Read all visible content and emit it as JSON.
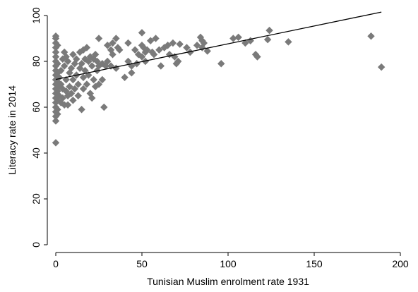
{
  "chart_data": {
    "type": "scatter",
    "title": "",
    "xlabel": "Tunisian Muslim enrolment rate 1931",
    "ylabel": "Literacy rate in 2014",
    "xlim": [
      0,
      200
    ],
    "ylim": [
      0,
      100
    ],
    "xticks": [
      "0",
      "50",
      "100",
      "150",
      "200"
    ],
    "yticks": [
      "0",
      "20",
      "40",
      "60",
      "80",
      "100"
    ],
    "grid": false,
    "legend": "none",
    "marker": "diamond",
    "point_color": "#7a7a7a",
    "line_color": "#000000",
    "fit_line": {
      "x": [
        0,
        189
      ],
      "y": [
        72.1,
        101.5
      ]
    },
    "series": [
      {
        "values": [
          [
            0,
            91
          ],
          [
            0,
            90
          ],
          [
            0,
            88
          ],
          [
            0,
            86
          ],
          [
            0,
            84
          ],
          [
            0,
            82
          ],
          [
            0,
            80
          ],
          [
            0,
            78
          ],
          [
            0,
            76
          ],
          [
            0,
            74
          ],
          [
            0,
            72
          ],
          [
            0,
            70
          ],
          [
            0,
            68
          ],
          [
            0,
            66
          ],
          [
            0,
            64
          ],
          [
            0,
            62
          ],
          [
            0,
            60
          ],
          [
            0,
            58
          ],
          [
            0,
            56
          ],
          [
            0,
            54
          ],
          [
            0,
            44.5
          ],
          [
            1,
            87
          ],
          [
            1,
            79
          ],
          [
            1,
            75
          ],
          [
            1,
            71
          ],
          [
            1,
            67
          ],
          [
            1,
            63
          ],
          [
            1,
            59
          ],
          [
            1,
            57
          ],
          [
            2,
            73
          ],
          [
            2,
            69
          ],
          [
            2,
            65
          ],
          [
            3,
            76
          ],
          [
            3,
            70
          ],
          [
            3,
            62
          ],
          [
            4,
            81
          ],
          [
            4,
            68
          ],
          [
            4,
            64
          ],
          [
            5,
            84
          ],
          [
            5,
            78
          ],
          [
            5,
            61
          ],
          [
            6,
            82
          ],
          [
            6,
            72
          ],
          [
            6,
            67
          ],
          [
            7,
            80
          ],
          [
            7,
            65
          ],
          [
            7,
            61
          ],
          [
            8,
            75
          ],
          [
            8,
            69
          ],
          [
            9,
            77
          ],
          [
            9,
            66
          ],
          [
            10,
            83
          ],
          [
            10,
            72
          ],
          [
            10,
            63
          ],
          [
            11,
            79
          ],
          [
            11,
            68
          ],
          [
            12,
            81
          ],
          [
            12,
            74
          ],
          [
            13,
            70
          ],
          [
            13,
            65
          ],
          [
            14,
            84
          ],
          [
            14,
            77
          ],
          [
            15,
            79
          ],
          [
            15,
            59
          ],
          [
            16,
            85
          ],
          [
            16,
            73
          ],
          [
            16,
            68
          ],
          [
            17,
            81
          ],
          [
            17,
            76
          ],
          [
            18,
            86
          ],
          [
            18,
            70
          ],
          [
            19,
            80
          ],
          [
            19,
            74
          ],
          [
            20,
            82
          ],
          [
            20,
            66
          ],
          [
            21,
            78
          ],
          [
            21,
            64
          ],
          [
            22,
            81
          ],
          [
            22,
            72
          ],
          [
            23,
            83
          ],
          [
            23,
            69
          ],
          [
            24,
            80
          ],
          [
            24,
            76
          ],
          [
            25,
            90
          ],
          [
            25,
            78
          ],
          [
            25,
            70
          ],
          [
            27,
            79
          ],
          [
            27,
            72
          ],
          [
            28,
            60
          ],
          [
            29,
            78
          ],
          [
            30,
            87
          ],
          [
            30,
            80
          ],
          [
            32,
            85
          ],
          [
            32,
            78
          ],
          [
            33,
            88
          ],
          [
            33,
            83
          ],
          [
            35,
            90
          ],
          [
            35,
            77
          ],
          [
            36,
            86
          ],
          [
            37,
            85
          ],
          [
            40,
            73
          ],
          [
            42,
            88
          ],
          [
            42,
            80
          ],
          [
            44,
            78
          ],
          [
            44,
            75
          ],
          [
            46,
            85
          ],
          [
            47,
            79
          ],
          [
            48,
            83
          ],
          [
            50,
            92.5
          ],
          [
            50,
            87
          ],
          [
            50,
            82
          ],
          [
            51,
            86
          ],
          [
            52,
            84
          ],
          [
            52,
            80
          ],
          [
            53,
            85
          ],
          [
            55,
            89
          ],
          [
            56,
            84
          ],
          [
            57,
            83
          ],
          [
            58,
            90
          ],
          [
            60,
            85
          ],
          [
            61,
            78
          ],
          [
            63,
            86
          ],
          [
            65,
            87
          ],
          [
            66,
            83
          ],
          [
            68,
            88
          ],
          [
            69,
            82
          ],
          [
            70,
            79
          ],
          [
            71,
            80
          ],
          [
            72,
            87.5
          ],
          [
            76,
            86
          ],
          [
            78,
            84
          ],
          [
            82,
            87
          ],
          [
            84,
            90.5
          ],
          [
            85,
            86
          ],
          [
            85,
            89
          ],
          [
            86,
            88
          ],
          [
            88,
            84.5
          ],
          [
            96,
            79
          ],
          [
            103,
            90
          ],
          [
            106,
            90.5
          ],
          [
            110,
            88
          ],
          [
            113,
            89
          ],
          [
            116,
            83
          ],
          [
            117,
            82
          ],
          [
            123,
            89.5
          ],
          [
            124,
            93.5
          ],
          [
            135,
            88.5
          ],
          [
            183,
            91
          ],
          [
            189,
            77.5
          ]
        ]
      }
    ]
  }
}
